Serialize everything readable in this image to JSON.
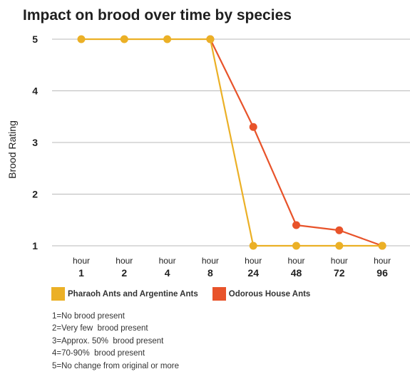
{
  "chart_data": {
    "type": "line",
    "title": "Impact on brood over time by species",
    "ylabel": "Brood Rating",
    "xlabel": "",
    "categories": [
      [
        "hour",
        "1"
      ],
      [
        "hour",
        "2"
      ],
      [
        "hour",
        "4"
      ],
      [
        "hour",
        "8"
      ],
      [
        "hour",
        "24"
      ],
      [
        "hour",
        "48"
      ],
      [
        "hour",
        "72"
      ],
      [
        "hour",
        "96"
      ]
    ],
    "ylim": [
      1,
      5
    ],
    "yticks": [
      1,
      2,
      3,
      4,
      5
    ],
    "grid": true,
    "legend_position": "bottom",
    "series": [
      {
        "name": "Pharaoh Ants and Argentine Ants",
        "color": "#ebb026",
        "values": [
          5,
          5,
          5,
          5,
          1,
          1,
          1,
          1
        ]
      },
      {
        "name": "Odorous House Ants",
        "color": "#e8532a",
        "values": [
          null,
          null,
          null,
          5,
          3.3,
          1.4,
          1.3,
          1
        ]
      }
    ],
    "notes": [
      "1=No brood present",
      "2=Very few  brood present",
      "3=Approx. 50%  brood present",
      "4=70-90%  brood present",
      "5=No change from original or more"
    ]
  }
}
